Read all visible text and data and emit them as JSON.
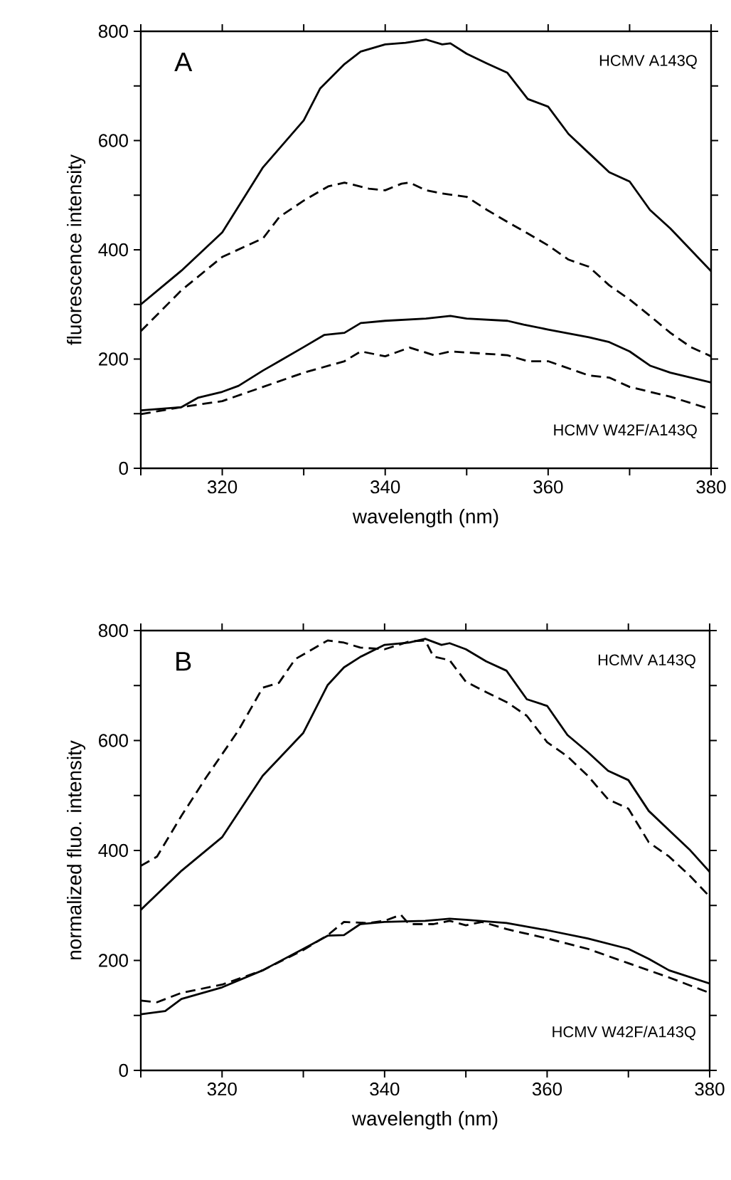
{
  "chart_data": [
    {
      "type": "line",
      "xlabel": "wavelength (nm)",
      "ylabel": "fluorescence intensity",
      "annotations": [
        "A",
        "HCMV A143Q",
        "HCMV W42F/A143Q"
      ],
      "xlim": [
        310,
        380
      ],
      "ylim": [
        0,
        800
      ],
      "xticks": [
        {
          "value": 310,
          "label": null
        },
        320,
        {
          "value": 330,
          "label": null
        },
        340,
        {
          "value": 350,
          "label": null
        },
        360,
        {
          "value": 370,
          "label": null
        },
        380
      ],
      "yticks": [
        0,
        {
          "value": 100,
          "label": null
        },
        200,
        {
          "value": 300,
          "label": null
        },
        400,
        {
          "value": 500,
          "label": null
        },
        600,
        {
          "value": 700,
          "label": null
        },
        800
      ],
      "marker": "none",
      "series": [
        {
          "color": "#000000",
          "line_style": "solid",
          "x": [
            310,
            315,
            320,
            325,
            330,
            332,
            335,
            337,
            340,
            342.5,
            345,
            347,
            348,
            350,
            352.5,
            355,
            357.5,
            360,
            362.5,
            365,
            367.5,
            370,
            372.5,
            375,
            377.5,
            380
          ],
          "values": [
            300,
            362,
            432,
            551,
            637,
            695,
            740,
            763,
            776,
            779,
            785,
            776,
            778,
            759,
            741,
            724,
            676,
            662,
            612,
            577,
            542,
            525,
            473,
            439,
            400,
            361
          ]
        },
        {
          "color": "#000000",
          "line_style": "dashed",
          "x": [
            310,
            315,
            320,
            325,
            327,
            330,
            333,
            335,
            338,
            340,
            342,
            343,
            345,
            347,
            350,
            352.5,
            355,
            357.5,
            360,
            362.5,
            365,
            367.5,
            370,
            372.5,
            375,
            377.5,
            380
          ],
          "values": [
            251,
            326,
            387,
            421,
            460,
            490,
            516,
            523,
            512,
            509,
            521,
            523,
            509,
            503,
            497,
            473,
            451,
            430,
            408,
            382,
            369,
            335,
            309,
            279,
            248,
            222,
            205
          ]
        },
        {
          "color": "#000000",
          "line_style": "solid",
          "x": [
            310,
            315,
            317,
            320,
            322,
            325,
            327,
            330,
            332.5,
            335,
            337,
            340,
            345,
            348,
            350,
            355,
            357,
            360,
            365,
            367.5,
            370,
            372.5,
            375,
            380
          ],
          "values": [
            106,
            112,
            129,
            140,
            151,
            179,
            196,
            222,
            244,
            248,
            266,
            270,
            274,
            279,
            274,
            270,
            263,
            254,
            240,
            231,
            214,
            188,
            175,
            157
          ]
        },
        {
          "color": "#000000",
          "line_style": "dashed",
          "x": [
            310,
            315,
            320,
            325,
            330,
            335,
            337,
            340,
            343,
            346,
            348,
            350,
            355,
            357.5,
            360,
            365,
            367.5,
            370,
            375,
            380
          ],
          "values": [
            99,
            112,
            123,
            149,
            175,
            196,
            214,
            205,
            221,
            207,
            214,
            212,
            207,
            196,
            196,
            170,
            166,
            149,
            131,
            108
          ]
        }
      ]
    },
    {
      "type": "line",
      "xlabel": "wavelength (nm)",
      "ylabel": "normalized fluo. intensity",
      "annotations": [
        "B",
        "HCMV A143Q",
        "HCMV W42F/A143Q"
      ],
      "xlim": [
        310,
        380
      ],
      "ylim": [
        0,
        800
      ],
      "xticks": [
        {
          "value": 310,
          "label": null
        },
        320,
        {
          "value": 330,
          "label": null
        },
        340,
        {
          "value": 350,
          "label": null
        },
        360,
        {
          "value": 370,
          "label": null
        },
        380
      ],
      "yticks": [
        0,
        {
          "value": 100,
          "label": null
        },
        200,
        {
          "value": 300,
          "label": null
        },
        400,
        {
          "value": 500,
          "label": null
        },
        600,
        {
          "value": 700,
          "label": null
        },
        800
      ],
      "marker": "none",
      "series": [
        {
          "color": "#000000",
          "line_style": "solid",
          "x": [
            310,
            315,
            320,
            325,
            330,
            333,
            335,
            337,
            340,
            343,
            345,
            347,
            348,
            350,
            352.5,
            355,
            357.5,
            360,
            362.5,
            365,
            367.5,
            370,
            372.5,
            375,
            377.5,
            380
          ],
          "values": [
            292,
            363,
            424,
            536,
            614,
            701,
            733,
            752,
            774,
            778,
            785,
            774,
            777,
            766,
            744,
            727,
            675,
            663,
            610,
            579,
            545,
            528,
            472,
            437,
            402,
            361
          ]
        },
        {
          "color": "#000000",
          "line_style": "dashed",
          "x": [
            310,
            312,
            315,
            318,
            320,
            322,
            325,
            327,
            329,
            331,
            333,
            335,
            337,
            340,
            343,
            345,
            346,
            348,
            350,
            352.5,
            355,
            357.5,
            360,
            362.5,
            365,
            367.5,
            370,
            372.5,
            375,
            377.5,
            380
          ],
          "values": [
            372,
            389,
            463,
            532,
            575,
            618,
            696,
            705,
            748,
            765,
            782,
            778,
            769,
            766,
            780,
            782,
            753,
            746,
            707,
            688,
            670,
            645,
            597,
            571,
            536,
            493,
            476,
            415,
            389,
            355,
            316
          ]
        },
        {
          "color": "#000000",
          "line_style": "solid",
          "x": [
            310,
            313,
            315,
            320,
            325,
            330,
            333,
            335,
            337,
            340,
            345,
            348,
            350,
            355,
            360,
            365,
            370,
            372.5,
            375,
            380
          ],
          "values": [
            102,
            108,
            130,
            151,
            182,
            221,
            245,
            246,
            266,
            270,
            272,
            276,
            274,
            268,
            255,
            240,
            221,
            203,
            182,
            158
          ]
        },
        {
          "color": "#000000",
          "line_style": "dashed",
          "x": [
            310,
            312,
            315,
            320,
            325,
            330,
            333,
            335,
            338,
            340,
            342,
            343,
            346,
            348,
            350,
            352,
            355,
            360,
            365,
            370,
            375,
            380
          ],
          "values": [
            127,
            124,
            141,
            156,
            182,
            219,
            246,
            270,
            268,
            272,
            283,
            266,
            266,
            272,
            264,
            270,
            257,
            240,
            221,
            195,
            169,
            141
          ]
        }
      ]
    }
  ]
}
